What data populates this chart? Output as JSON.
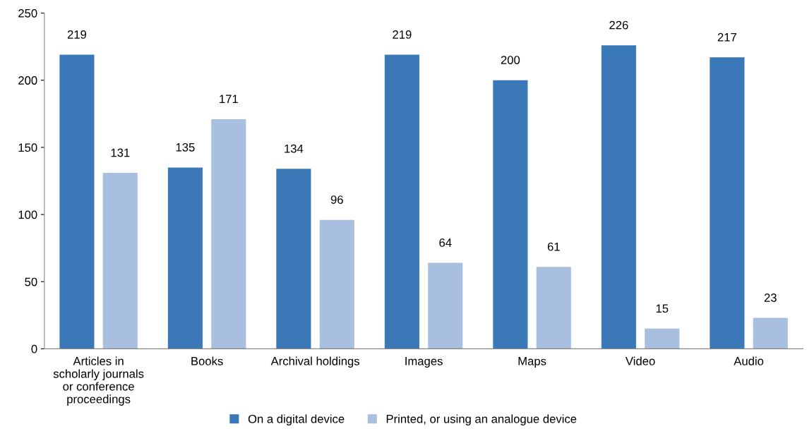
{
  "chart_data": {
    "type": "bar",
    "categories": [
      "Articles in scholarly journals or conference proceedings",
      "Books",
      "Archival holdings",
      "Images",
      "Maps",
      "Video",
      "Audio"
    ],
    "series": [
      {
        "name": "On a digital device",
        "color": "#3a78b8",
        "values": [
          219,
          135,
          134,
          219,
          200,
          226,
          217
        ]
      },
      {
        "name": "Printed, or using an analogue device",
        "color": "#a9bfdf",
        "values": [
          131,
          171,
          96,
          64,
          61,
          15,
          23
        ]
      }
    ],
    "ylim": [
      0,
      250
    ],
    "yticks": [
      0,
      50,
      100,
      150,
      200,
      250
    ],
    "data_labels": true,
    "grid": false,
    "legend": "bottom"
  }
}
